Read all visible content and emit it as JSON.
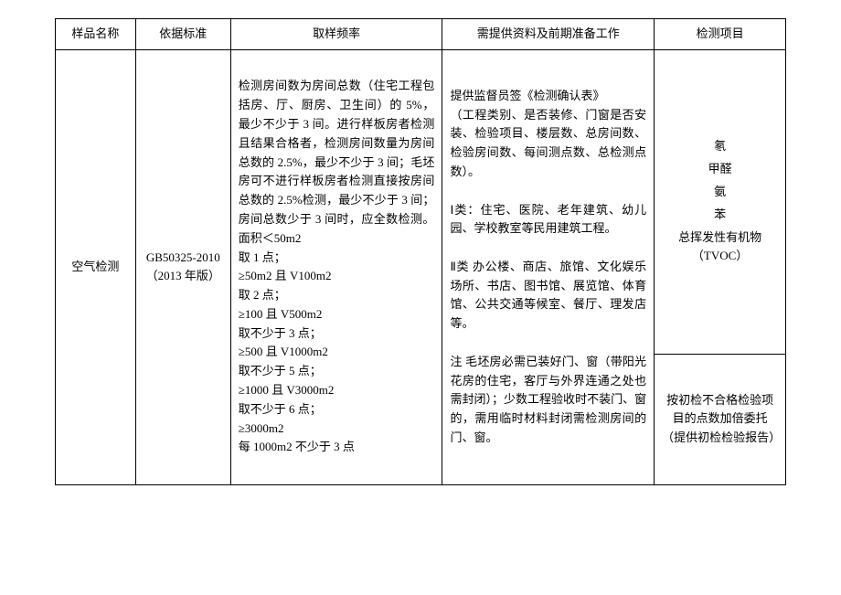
{
  "headers": {
    "c1": "样品名称",
    "c2": "依据标准",
    "c3": "取样频率",
    "c4": "需提供资料及前期准备工作",
    "c5": "检测项目"
  },
  "row": {
    "sample": "空气检测",
    "standard": "GB50325-2010（2013 年版）",
    "sampling": "检测房间数为房间总数（住宅工程包括房、厅、厨房、卫生间）的 5%，最少不少于 3 间。进行样板房者检测且结果合格者，检测房间数量为房间总数的 2.5%，最少不少于 3 间；毛坯房可不进行样板房者检测直接按房间总数的 2.5%检测，最少不少于 3 间；房间总数少于 3 间时，应全数检测。面积＜50m2\n取 1 点；\n≥50m2 且 V100m2\n取 2 点；\n≥100 且 V500m2\n取不少于 3 点；\n≥500 且 V1000m2\n取不少于 5 点；\n≥1000 且 V3000m2\n取不少于 6 点；\n≥3000m2\n每 1000m2 不少于 3 点",
    "materials": "提供监督员签《检测确认表》\n（工程类别、是否装修、门窗是否安装、检验项目、楼层数、总房间数、检验房间数、每间测点数、总检测点数）。\n\nⅠ类：住宅、医院、老年建筑、幼儿园、学校教室等民用建筑工程。\n\nⅡ类 办公楼、商店、旅馆、文化娱乐场所、书店、图书馆、展览馆、体育馆、公共交通等候室、餐厅、理发店等。\n\n注 毛坯房必需已装好门、窗（带阳光花房的住宅，客厅与外界连通之处也需封闭）；少数工程验收时不装门、窗的，需用临时材料封闭需检测房间的门、窗。",
    "items": {
      "a": "氡",
      "b": "甲醛",
      "c": "氨",
      "d": "苯",
      "e": "总挥发性有机物（TVOC）"
    },
    "note": "按初检不合格检验项目的点数加倍委托（提供初检检验报告）"
  },
  "col_widths": {
    "c1": "11%",
    "c2": "13%",
    "c3": "29%",
    "c4": "29%",
    "c5": "18%"
  }
}
